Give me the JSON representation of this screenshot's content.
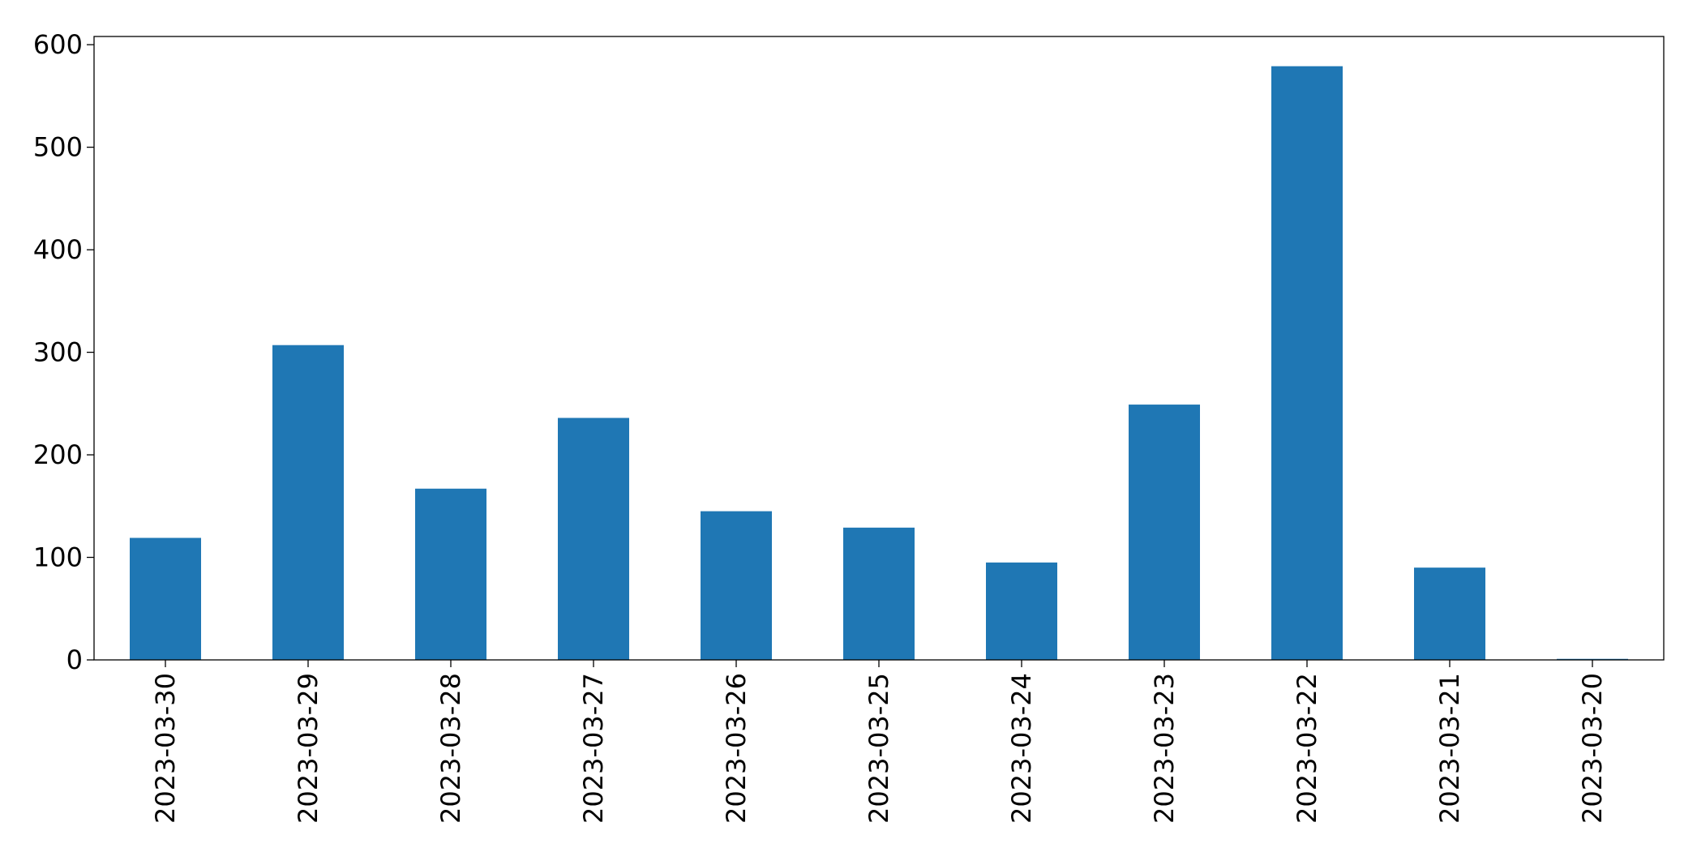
{
  "chart_data": {
    "type": "bar",
    "categories": [
      "2023-03-30",
      "2023-03-29",
      "2023-03-28",
      "2023-03-27",
      "2023-03-26",
      "2023-03-25",
      "2023-03-24",
      "2023-03-23",
      "2023-03-22",
      "2023-03-21",
      "2023-03-20"
    ],
    "values": [
      119,
      307,
      167,
      236,
      145,
      129,
      95,
      249,
      579,
      90,
      1
    ],
    "color": "#1f77b4",
    "ylim": [
      0,
      608
    ],
    "yticks": [
      0,
      100,
      200,
      300,
      400,
      500,
      600
    ],
    "grid": false
  }
}
